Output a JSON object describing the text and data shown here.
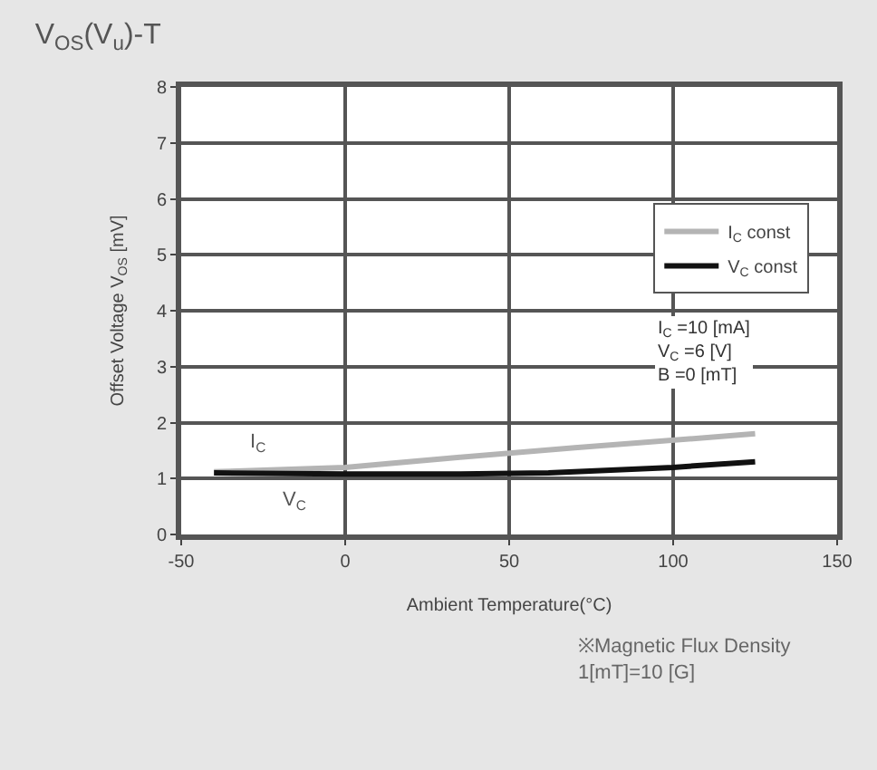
{
  "chart_data": {
    "type": "line",
    "title": "V$_{OS}$(V$_{u}$)-T",
    "xlabel": "Ambient Temperature(°C)",
    "ylabel": "Offset Voltage V$_{OS}$ [mV]",
    "series": [
      {
        "name": "I$_{C}$ const",
        "color": "#b4b4b4",
        "x": [
          -40,
          0,
          35,
          70,
          125
        ],
        "values": [
          1.12,
          1.2,
          1.38,
          1.55,
          1.8
        ]
      },
      {
        "name": "V$_{C}$ const",
        "color": "#111111",
        "x": [
          -40,
          0,
          35,
          62,
          100,
          125
        ],
        "values": [
          1.1,
          1.08,
          1.08,
          1.1,
          1.2,
          1.3
        ]
      }
    ],
    "xlim": [
      -50,
      150
    ],
    "xticks": [
      -50,
      0,
      50,
      100,
      150
    ],
    "ylim": [
      0,
      8
    ],
    "yticks": [
      0,
      1,
      2,
      3,
      4,
      5,
      6,
      7,
      8
    ],
    "grid": true,
    "legend": "right",
    "marker": "none",
    "line_style": "solid",
    "annotations": [
      "I$_{C}$",
      "V$_{C}$",
      "I$_{C}$ =10 [mA]\nV$_{C}$ =6 [V]\nB =0 [mT]",
      "※Magnetic Flux Density\n1[mT]=10 [G]"
    ]
  }
}
